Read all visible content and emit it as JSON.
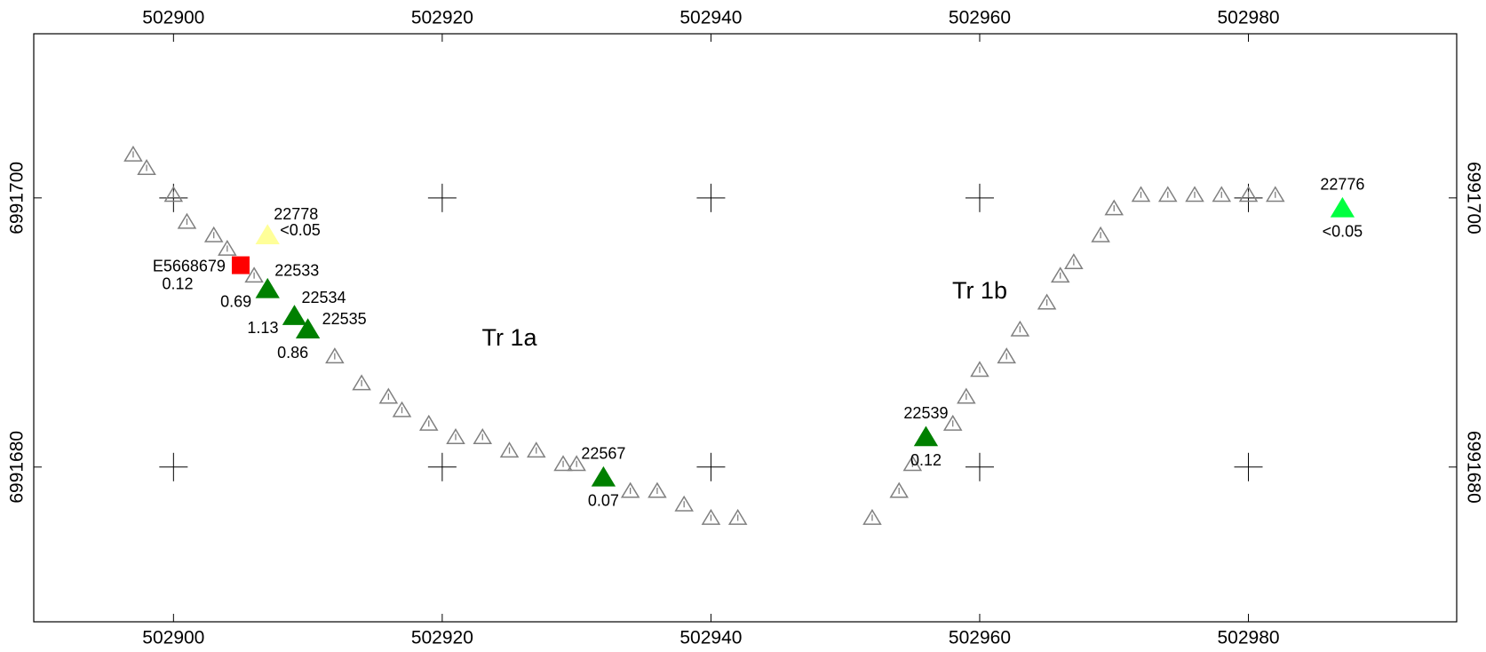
{
  "chart_data": {
    "type": "scatter",
    "xlim": [
      502889.6,
      502995.5
    ],
    "ylim": [
      6991668.5,
      6991712.2
    ],
    "xticks": [
      502900,
      502920,
      502940,
      502960,
      502980
    ],
    "yticks": [
      6991680,
      6991700
    ],
    "grid": "cross",
    "stations": {
      "color": "#808080",
      "x": [
        502897,
        502898,
        502900,
        502901,
        502903,
        502904,
        502906,
        502912,
        502914,
        502916,
        502917,
        502919,
        502921,
        502923,
        502925,
        502927,
        502929,
        502930,
        502934,
        502936,
        502938,
        502940,
        502942,
        502952,
        502954,
        502955,
        502958,
        502959,
        502960,
        502962,
        502963,
        502965,
        502966,
        502967,
        502969,
        502970,
        502972,
        502974,
        502976,
        502978,
        502980,
        502982
      ],
      "y": [
        6991703.2,
        6991702.2,
        6991700.2,
        6991698.2,
        6991697.2,
        6991696.2,
        6991694.2,
        6991688.2,
        6991686.2,
        6991685.2,
        6991684.2,
        6991683.2,
        6991682.2,
        6991682.2,
        6991681.2,
        6991681.2,
        6991680.2,
        6991680.2,
        6991678.2,
        6991678.2,
        6991677.2,
        6991676.2,
        6991676.2,
        6991676.2,
        6991678.2,
        6991680.2,
        6991683.2,
        6991685.2,
        6991687.2,
        6991688.2,
        6991690.2,
        6991692.2,
        6991694.2,
        6991695.2,
        6991697.2,
        6991699.2,
        6991700.2,
        6991700.2,
        6991700.2,
        6991700.2,
        6991700.2,
        6991700.2
      ]
    },
    "samples": [
      {
        "id": "22778",
        "grade": "<0.05",
        "x": 502907,
        "y": 6991697.2,
        "marker": "triangle",
        "color": "#ffff99"
      },
      {
        "id": "E5668679",
        "grade": 0.12,
        "x": 502905,
        "y": 6991695,
        "marker": "square",
        "color": "#ff0000"
      },
      {
        "id": "22533",
        "grade": 0.69,
        "x": 502907,
        "y": 6991693.2,
        "marker": "triangle",
        "color": "#008000"
      },
      {
        "id": "22534",
        "grade": 1.13,
        "x": 502909,
        "y": 6991691.2,
        "marker": "triangle",
        "color": "#008000"
      },
      {
        "id": "22535",
        "grade": 0.86,
        "x": 502910,
        "y": 6991690.2,
        "marker": "triangle",
        "color": "#008000"
      },
      {
        "id": "22567",
        "grade": 0.07,
        "x": 502932,
        "y": 6991679.2,
        "marker": "triangle",
        "color": "#008000"
      },
      {
        "id": "22539",
        "grade": 0.12,
        "x": 502956,
        "y": 6991682.2,
        "marker": "triangle",
        "color": "#008000"
      },
      {
        "id": "22776",
        "grade": "<0.05",
        "x": 502987,
        "y": 6991699.2,
        "marker": "triangle",
        "color": "#00ff40"
      }
    ],
    "annotations": [
      {
        "text": "Tr 1a",
        "x": 502925,
        "y": 6991689.5
      },
      {
        "text": "Tr 1b",
        "x": 502960,
        "y": 6991693
      }
    ]
  }
}
